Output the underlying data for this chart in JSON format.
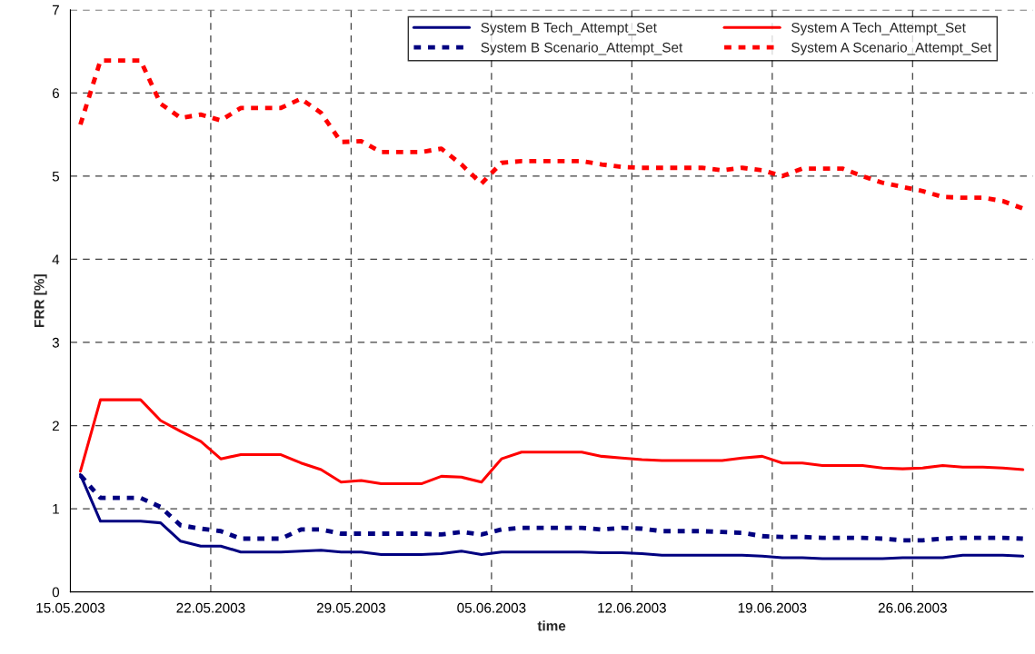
{
  "chart_data": {
    "type": "line",
    "xlabel": "time",
    "ylabel": "FRR [%]",
    "x": [
      "2003-05-15T12:00",
      "2003-05-16T12:00",
      "2003-05-17T12:00",
      "2003-05-18T12:00",
      "2003-05-19T12:00",
      "2003-05-20T12:00",
      "2003-05-21T12:00",
      "2003-05-22T12:00",
      "2003-05-23T12:00",
      "2003-05-24T12:00",
      "2003-05-25T12:00",
      "2003-05-26T12:00",
      "2003-05-27T12:00",
      "2003-05-28T12:00",
      "2003-05-29T12:00",
      "2003-05-30T12:00",
      "2003-05-31T12:00",
      "2003-06-01T12:00",
      "2003-06-02T12:00",
      "2003-06-03T12:00",
      "2003-06-04T12:00",
      "2003-06-05T12:00",
      "2003-06-06T12:00",
      "2003-06-07T12:00",
      "2003-06-08T12:00",
      "2003-06-09T12:00",
      "2003-06-10T12:00",
      "2003-06-11T12:00",
      "2003-06-12T12:00",
      "2003-06-13T12:00",
      "2003-06-14T12:00",
      "2003-06-15T12:00",
      "2003-06-16T12:00",
      "2003-06-17T12:00",
      "2003-06-18T12:00",
      "2003-06-19T12:00",
      "2003-06-20T12:00",
      "2003-06-21T12:00",
      "2003-06-22T12:00",
      "2003-06-23T12:00",
      "2003-06-24T12:00",
      "2003-06-25T12:00",
      "2003-06-26T12:00",
      "2003-06-27T12:00",
      "2003-06-28T12:00",
      "2003-06-29T12:00",
      "2003-06-30T12:00",
      "2003-07-01T12:00"
    ],
    "series": [
      {
        "name": "System B Tech_Attempt_Set",
        "color": "#000080",
        "line_style": "solid",
        "values": [
          1.41,
          0.85,
          0.85,
          0.85,
          0.83,
          0.61,
          0.55,
          0.55,
          0.48,
          0.48,
          0.48,
          0.49,
          0.5,
          0.48,
          0.48,
          0.45,
          0.45,
          0.45,
          0.46,
          0.49,
          0.45,
          0.48,
          0.48,
          0.48,
          0.48,
          0.48,
          0.47,
          0.47,
          0.46,
          0.44,
          0.44,
          0.44,
          0.44,
          0.44,
          0.43,
          0.41,
          0.41,
          0.4,
          0.4,
          0.4,
          0.4,
          0.41,
          0.41,
          0.41,
          0.44,
          0.44,
          0.44,
          0.43
        ]
      },
      {
        "name": "System A Tech_Attempt_Set",
        "color": "#ff0000",
        "line_style": "solid",
        "values": [
          1.45,
          2.31,
          2.31,
          2.31,
          2.06,
          1.93,
          1.81,
          1.6,
          1.65,
          1.65,
          1.65,
          1.55,
          1.47,
          1.32,
          1.34,
          1.3,
          1.3,
          1.3,
          1.39,
          1.38,
          1.32,
          1.6,
          1.68,
          1.68,
          1.68,
          1.68,
          1.63,
          1.61,
          1.59,
          1.58,
          1.58,
          1.58,
          1.58,
          1.61,
          1.63,
          1.55,
          1.55,
          1.52,
          1.52,
          1.52,
          1.49,
          1.48,
          1.49,
          1.52,
          1.5,
          1.5,
          1.49,
          1.47
        ]
      },
      {
        "name": "System B Scenario_Attempt_Set",
        "color": "#000080",
        "line_style": "dotted",
        "values": [
          1.4,
          1.13,
          1.13,
          1.13,
          1.02,
          0.8,
          0.76,
          0.73,
          0.64,
          0.64,
          0.64,
          0.75,
          0.75,
          0.7,
          0.7,
          0.7,
          0.7,
          0.7,
          0.69,
          0.72,
          0.69,
          0.75,
          0.77,
          0.77,
          0.77,
          0.77,
          0.75,
          0.77,
          0.76,
          0.73,
          0.73,
          0.73,
          0.72,
          0.71,
          0.67,
          0.66,
          0.66,
          0.65,
          0.65,
          0.65,
          0.64,
          0.62,
          0.62,
          0.64,
          0.65,
          0.65,
          0.65,
          0.64
        ]
      },
      {
        "name": "System A Scenario_Attempt_Set",
        "color": "#ff0000",
        "line_style": "dotted",
        "values": [
          5.62,
          6.39,
          6.39,
          6.39,
          5.87,
          5.7,
          5.74,
          5.67,
          5.82,
          5.82,
          5.82,
          5.93,
          5.76,
          5.41,
          5.42,
          5.29,
          5.29,
          5.29,
          5.33,
          5.14,
          4.91,
          5.16,
          5.18,
          5.18,
          5.18,
          5.18,
          5.14,
          5.11,
          5.1,
          5.1,
          5.1,
          5.1,
          5.07,
          5.1,
          5.07,
          5.0,
          5.09,
          5.09,
          5.09,
          5.0,
          4.92,
          4.87,
          4.82,
          4.75,
          4.74,
          4.74,
          4.7,
          4.61
        ]
      }
    ],
    "xlim": [
      "2003-05-15",
      "2003-07-02"
    ],
    "xticks": [
      {
        "value": "2003-05-15",
        "label": "15.05.2003"
      },
      {
        "value": "2003-05-22",
        "label": "22.05.2003"
      },
      {
        "value": "2003-05-29",
        "label": "29.05.2003"
      },
      {
        "value": "2003-06-05",
        "label": "05.06.2003"
      },
      {
        "value": "2003-06-12",
        "label": "12.06.2003"
      },
      {
        "value": "2003-06-19",
        "label": "19.06.2003"
      },
      {
        "value": "2003-06-26",
        "label": "26.06.2003"
      }
    ],
    "ylim": [
      0,
      7
    ],
    "yticks": [
      0,
      1,
      2,
      3,
      4,
      5,
      6,
      7
    ],
    "grid": true,
    "legend": "top right",
    "marker": "none"
  }
}
